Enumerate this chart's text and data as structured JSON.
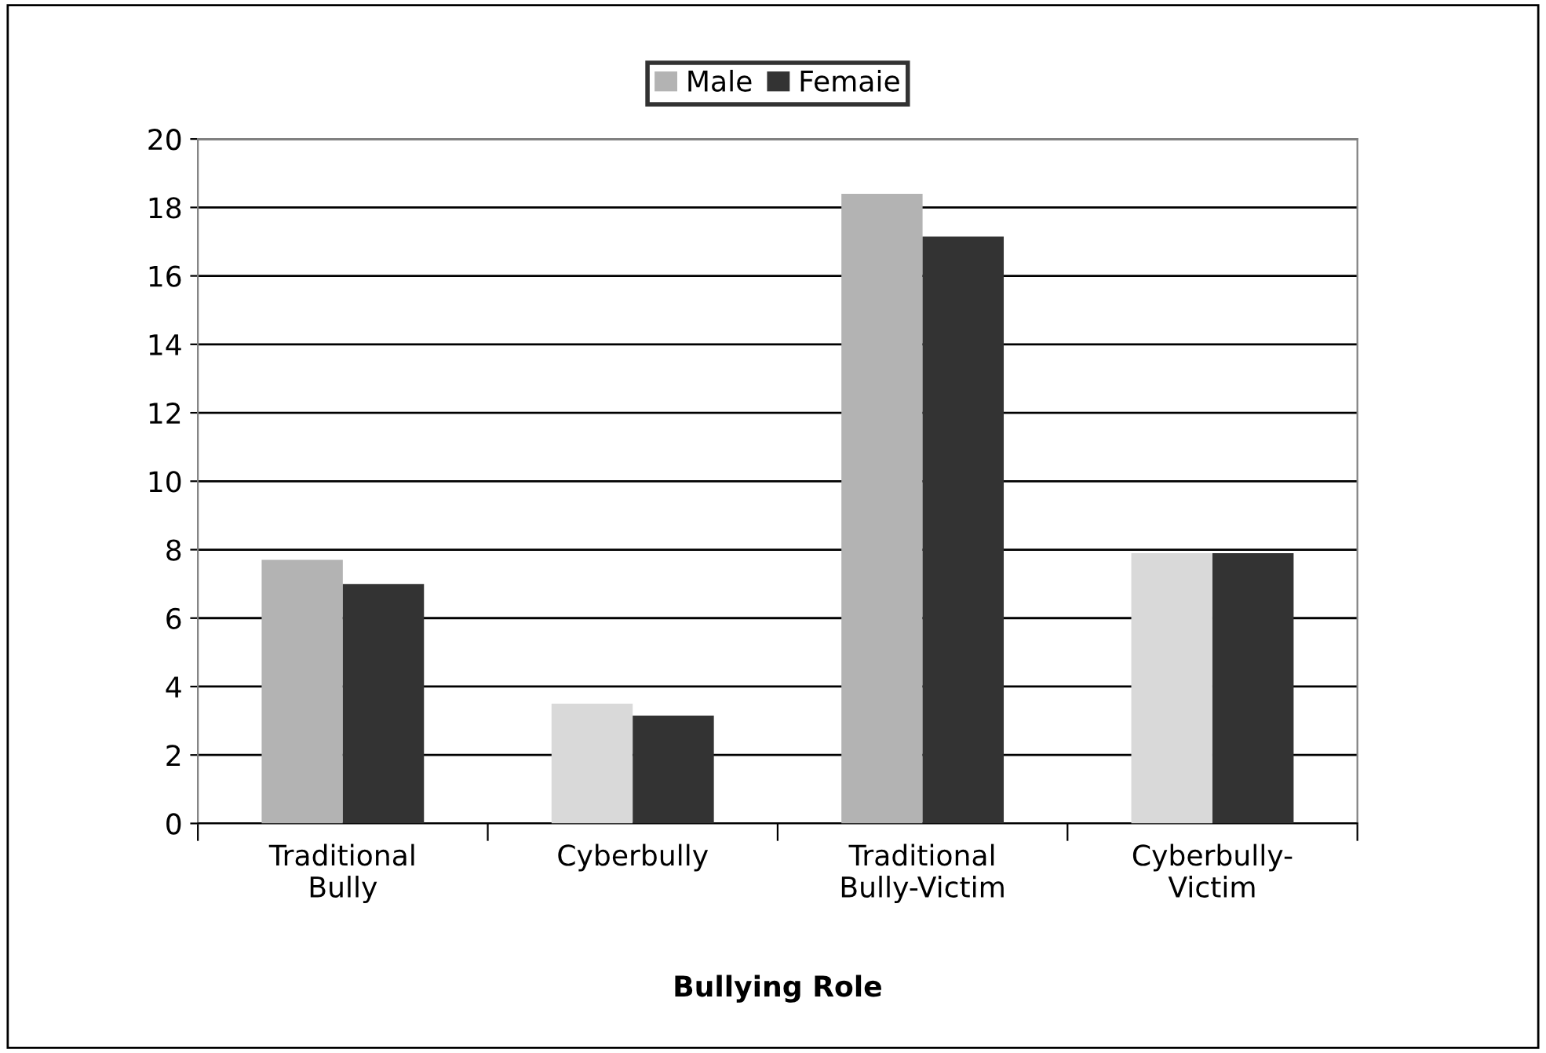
{
  "chart_data": {
    "type": "bar",
    "xlabel": "Bullying Role",
    "categories": [
      "Traditional\nBully",
      "Cyberbully",
      "Traditional\nBully-Victim",
      "Cyberbully-\nVictim"
    ],
    "series": [
      {
        "name": "Male",
        "color": "#b3b3b3",
        "colors": [
          "#b3b3b3",
          "#d9d9d9",
          "#b3b3b3",
          "#d9d9d9"
        ],
        "values": [
          7.7,
          3.5,
          18.4,
          7.9
        ]
      },
      {
        "name": "Femaie",
        "color": "#333333",
        "values": [
          7.0,
          3.15,
          17.15,
          7.9
        ]
      }
    ],
    "ylim": [
      0,
      20
    ],
    "yticks": [
      0,
      2,
      4,
      6,
      8,
      10,
      12,
      14,
      16,
      18,
      20
    ],
    "grid": "y",
    "legend": "top"
  }
}
